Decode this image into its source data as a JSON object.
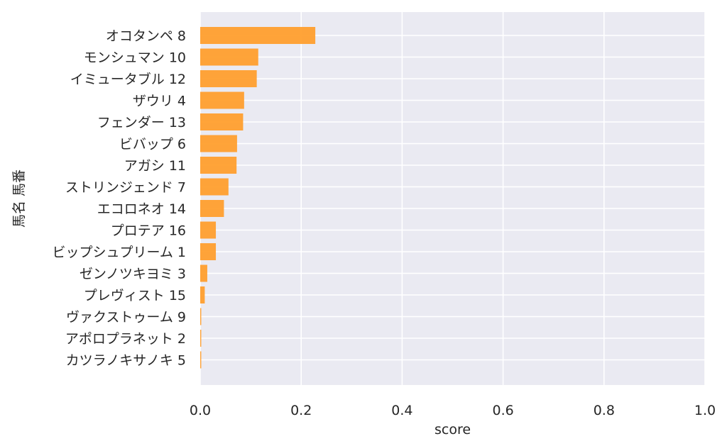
{
  "chart_data": {
    "type": "bar",
    "orientation": "horizontal",
    "categories": [
      "オコタンペ 8",
      "モンシュマン 10",
      "イミュータブル 12",
      "ザウリ 4",
      "フェンダー 13",
      "ビバップ 6",
      "アガシ 11",
      "ストリンジェンド 7",
      "エコロネオ 14",
      "プロテア 16",
      "ビップシュプリーム 1",
      "ゼンノツキヨミ 3",
      "プレヴィスト 15",
      "ヴァクストゥーム 9",
      "アポロプラネット 2",
      "カツラノキサノキ 5"
    ],
    "values": [
      0.228,
      0.115,
      0.112,
      0.087,
      0.085,
      0.073,
      0.072,
      0.056,
      0.047,
      0.031,
      0.031,
      0.014,
      0.009,
      0.002,
      0.002,
      0.002
    ],
    "title": "",
    "xlabel": "score",
    "ylabel": "馬名 馬番",
    "xlim": [
      0,
      1.0
    ],
    "xticks": [
      "0.0",
      "0.2",
      "0.4",
      "0.6",
      "0.8",
      "1.0"
    ],
    "xtick_values": [
      0,
      0.2,
      0.4,
      0.6,
      0.8,
      1.0
    ],
    "grid": true,
    "colors": {
      "bar": "#ff9f2e",
      "plot_background": "#eaeaf2",
      "grid": "#ffffff",
      "text": "#262626"
    }
  }
}
